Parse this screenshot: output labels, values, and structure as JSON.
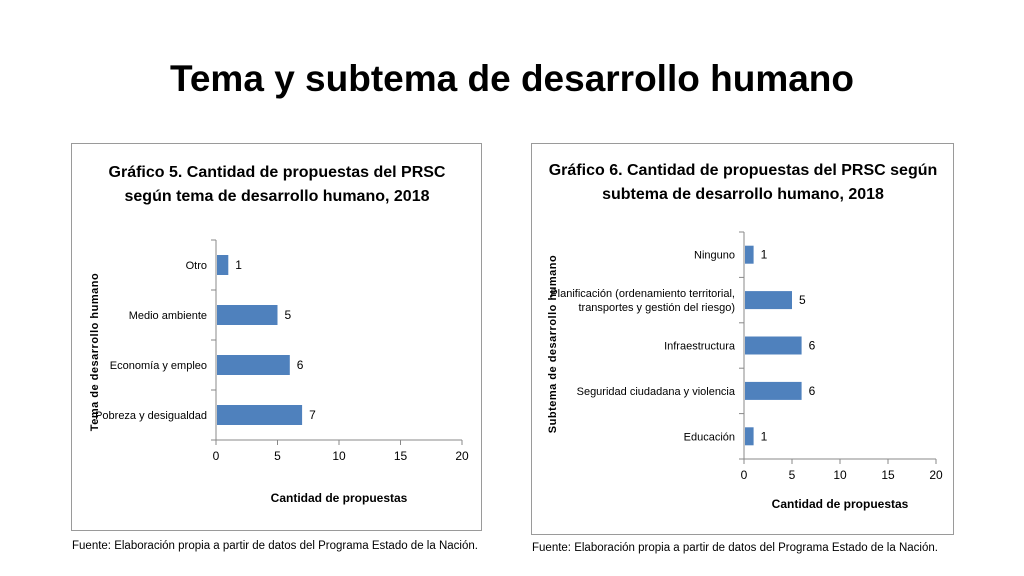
{
  "slide": {
    "title": "Tema y subtema de desarrollo humano"
  },
  "chart_data": [
    {
      "type": "bar",
      "orientation": "horizontal",
      "title_lines": [
        "Gráfico 5. Cantidad de propuestas del PRSC",
        "según tema de desarrollo humano, 2018"
      ],
      "xlabel": "Cantidad de propuestas",
      "ylabel": "Tema de desarrollo humano",
      "categories": [
        [
          "Otro"
        ],
        [
          "Medio ambiente"
        ],
        [
          "Economía y empleo"
        ],
        [
          "Pobreza y desigualdad"
        ]
      ],
      "values": [
        1,
        5,
        6,
        7
      ],
      "xlim": [
        0,
        20
      ],
      "xticks": [
        0,
        5,
        10,
        15,
        20
      ],
      "bar_color": "#4f81bd",
      "grid": false,
      "data_labels": true
    },
    {
      "type": "bar",
      "orientation": "horizontal",
      "title_lines": [
        "Gráfico 6. Cantidad de propuestas del PRSC según",
        "subtema de desarrollo humano, 2018"
      ],
      "xlabel": "Cantidad de propuestas",
      "ylabel": "Subtema de desarrollo humano",
      "categories": [
        [
          "Ninguno"
        ],
        [
          "Planificación (ordenamiento territorial,",
          "transportes y gestión del riesgo)"
        ],
        [
          "Infraestructura"
        ],
        [
          "Seguridad ciudadana y violencia"
        ],
        [
          "Educación"
        ]
      ],
      "values": [
        1,
        5,
        6,
        6,
        1
      ],
      "xlim": [
        0,
        20
      ],
      "xticks": [
        0,
        5,
        10,
        15,
        20
      ],
      "bar_color": "#4f81bd",
      "grid": false,
      "data_labels": true
    }
  ],
  "sources": [
    "Fuente: Elaboración propia a partir de datos del Programa Estado de la Nación.",
    "Fuente: Elaboración propia a partir de datos del Programa Estado de la Nación."
  ]
}
